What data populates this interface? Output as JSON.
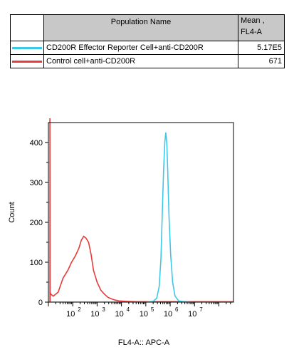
{
  "table": {
    "header_name": "Population Name",
    "header_mean_line1": "Mean ,",
    "header_mean_line2": "FL4-A",
    "rows": [
      {
        "label": "CD200R Effector Reporter Cell+anti-CD200R",
        "mean": "5.17E5",
        "color": "#3ec8e8"
      },
      {
        "label": "Control cell+anti-CD200R",
        "mean": "671",
        "color": "#e83a3a"
      }
    ]
  },
  "chart_data": {
    "type": "line",
    "xlabel": "FL4-A:: APC-A",
    "ylabel": "Count",
    "xscale": "log",
    "ylim": [
      0,
      450
    ],
    "yticks": [
      0,
      100,
      200,
      300,
      400
    ],
    "xticks": [
      2,
      3,
      4,
      5,
      6,
      7
    ],
    "grid": false,
    "series": [
      {
        "name": "Control cell+anti-CD200R",
        "color": "#e83a3a",
        "log_x": [
          1.06,
          1.06,
          1.06,
          1.07,
          1.07,
          1.1,
          1.2,
          1.4,
          1.6,
          1.8,
          1.95,
          2.1,
          2.25,
          2.35,
          2.45,
          2.55,
          2.65,
          2.75,
          2.85,
          3.0,
          3.15,
          3.3,
          3.45,
          3.6,
          3.75,
          3.9,
          4.2,
          4.6,
          5.2,
          6.0,
          7.0,
          8.0,
          8.6
        ],
        "y": [
          0,
          480,
          480,
          0,
          25,
          20,
          15,
          25,
          60,
          80,
          100,
          115,
          135,
          155,
          165,
          160,
          150,
          120,
          80,
          50,
          30,
          20,
          12,
          8,
          5,
          3,
          2,
          1,
          1,
          1,
          1,
          1,
          1
        ]
      },
      {
        "name": "CD200R Effector Reporter Cell+anti-CD200R",
        "color": "#3ec8e8",
        "log_x": [
          1.06,
          2.0,
          3.0,
          4.0,
          5.0,
          5.3,
          5.45,
          5.55,
          5.62,
          5.68,
          5.73,
          5.78,
          5.82,
          5.86,
          5.9,
          5.95,
          6.02,
          6.1,
          6.2,
          6.35,
          6.6,
          7.0,
          8.0,
          8.6
        ],
        "y": [
          0,
          0,
          0,
          0,
          0,
          2,
          10,
          40,
          110,
          230,
          330,
          400,
          425,
          400,
          330,
          220,
          120,
          50,
          15,
          3,
          1,
          0,
          0,
          0
        ]
      }
    ]
  }
}
